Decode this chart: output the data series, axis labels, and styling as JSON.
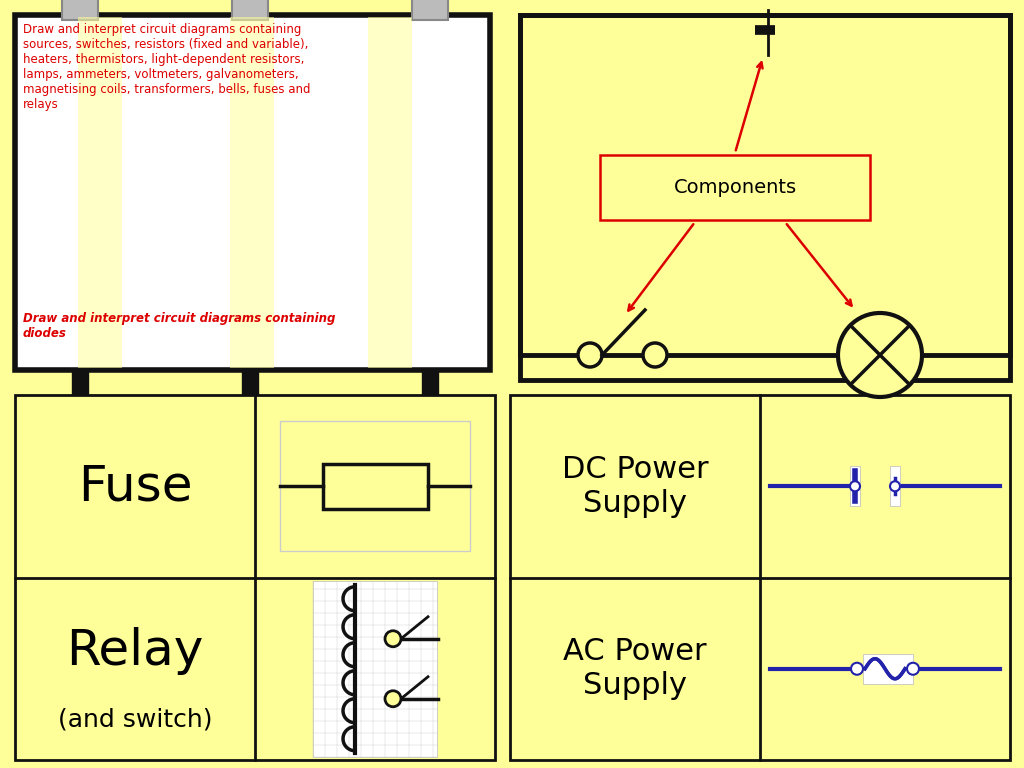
{
  "bg_color": "#FFFF99",
  "title_text1": "Draw and interpret circuit diagrams containing\nsources, switches, resistors (fixed and variable),\nheaters, thermistors, light-dependent resistors,\nlamps, ammeters, voltmeters, galvanometers,\nmagnetising coils, transformers, bells, fuses and\nrelays",
  "title_text2": "Draw and interpret circuit diagrams containing\ndiodes",
  "components_label": "Components",
  "fuse_label": "Fuse",
  "relay_label": "Relay",
  "relay_sublabel": "(and switch)",
  "dc_label": "DC Power\nSupply",
  "ac_label": "AC Power\nSupply",
  "line_color": "#111111",
  "red_color": "#dd0000",
  "blue_color": "#2222aa"
}
